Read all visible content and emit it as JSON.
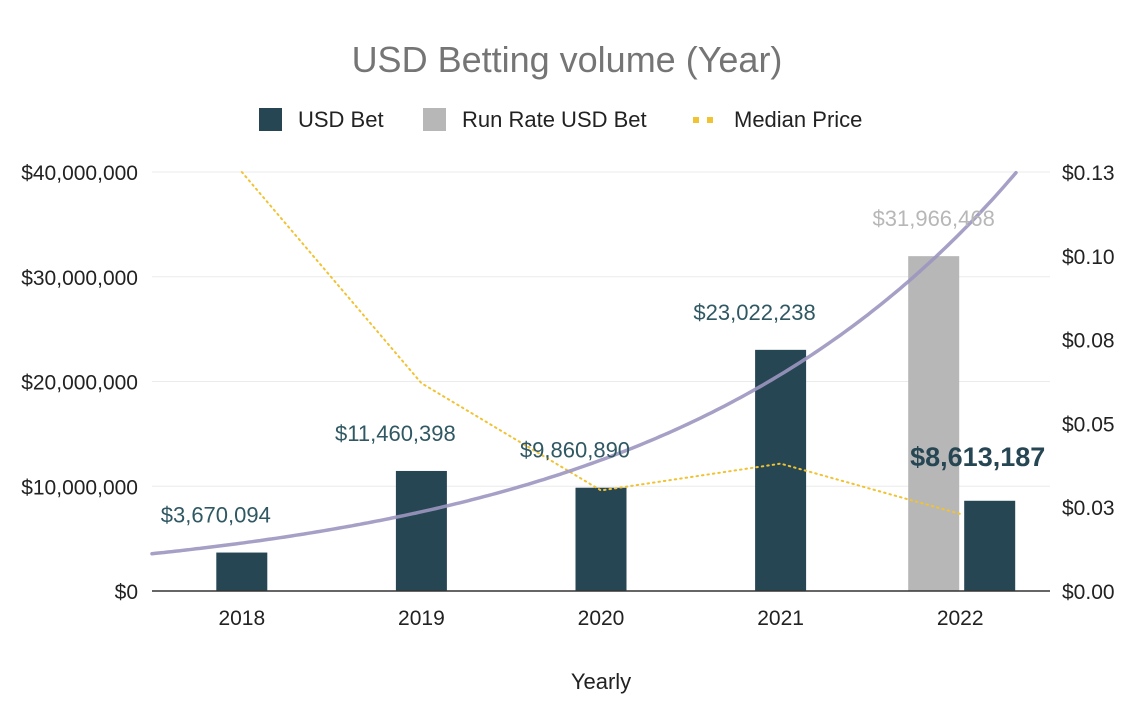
{
  "chart_data": {
    "type": "bar",
    "title": "USD Betting volume (Year)",
    "xlabel": "Yearly",
    "ylabel": "",
    "categories": [
      "2018",
      "2019",
      "2020",
      "2021",
      "2022"
    ],
    "ylim": [
      0,
      40000000
    ],
    "y2lim": [
      0,
      0.125
    ],
    "y_ticks": [
      0,
      10000000,
      20000000,
      30000000,
      40000000
    ],
    "y_tick_labels": [
      "$0",
      "$10,000,000",
      "$20,000,000",
      "$30,000,000",
      "$40,000,000"
    ],
    "y2_ticks": [
      0,
      0.025,
      0.05,
      0.075,
      0.1,
      0.125
    ],
    "y2_tick_labels": [
      "$0.00",
      "$0.03",
      "$0.05",
      "$0.08",
      "$0.10",
      "$0.13"
    ],
    "legend_position": "top",
    "grid": true,
    "series": [
      {
        "name": "USD Bet",
        "type": "bar",
        "color": "#264653",
        "values": [
          3670094,
          11460398,
          9860890,
          23022238,
          8613187
        ],
        "labels": [
          "$3,670,094",
          "$11,460,398",
          "$9,860,890",
          "$23,022,238",
          "$8,613,187"
        ]
      },
      {
        "name": "Run Rate USD Bet",
        "type": "bar",
        "color": "#b7b7b7",
        "values": [
          null,
          null,
          null,
          null,
          31966468
        ],
        "labels": [
          "",
          "",
          "",
          "",
          "$31,966,468"
        ]
      },
      {
        "name": "Median Price",
        "type": "line",
        "style": "dotted",
        "axis": "right",
        "color": "#f1c232",
        "values": [
          0.125,
          0.062,
          0.03,
          0.038,
          0.023
        ]
      }
    ],
    "trendline": {
      "type": "exponential",
      "color": "#9c96c0",
      "series": "USD Bet + Run Rate USD Bet"
    }
  }
}
